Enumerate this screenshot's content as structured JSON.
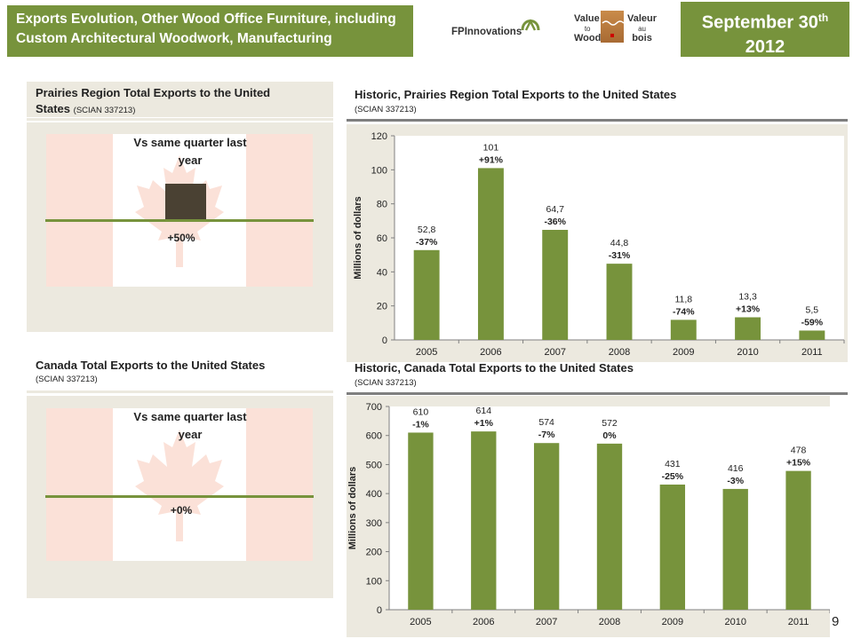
{
  "header": {
    "title_line1": "Exports Evolution, Other Wood Office Furniture, including",
    "title_line2": "Custom Architectural Woodwork, Manufacturing",
    "date_main": "September 30",
    "date_sup": "th",
    "date_year": "2012"
  },
  "logos": {
    "fp": "FPInnovations",
    "vtw_top": "Value",
    "vtw_mid": "to",
    "vtw_bot": "Wood",
    "vab_top": "Valeur",
    "vab_mid": "au",
    "vab_bot": "bois"
  },
  "prairies_panel": {
    "title_line1": "Prairies Region Total Exports to the United",
    "title_line2": "States",
    "code": "(SCIAN  337213)",
    "vs_label_line1": "Vs same quarter last",
    "vs_label_line2": "year",
    "change_label": "+50%",
    "change_value": 50
  },
  "canada_panel": {
    "title": "Canada Total Exports to the United States",
    "code": "(SCIAN  337213)",
    "vs_label_line1": "Vs same quarter last",
    "vs_label_line2": "year",
    "change_label": "+0%",
    "change_value": 0
  },
  "page_number": "9",
  "colors": {
    "accent": "#77933c",
    "bar": "#77933c",
    "dark_bar": "#4a4133",
    "flag_red": "#fbe1d8"
  },
  "chart_data": [
    {
      "type": "bar",
      "title": "Historic, Prairies Region Total Exports to the United States",
      "subtitle": "(SCIAN 337213)",
      "ylabel": "Millions  of dollars",
      "ylim": [
        0,
        120
      ],
      "yticks": [
        0,
        20,
        40,
        60,
        80,
        100,
        120
      ],
      "categories": [
        "2005",
        "2006",
        "2007",
        "2008",
        "2009",
        "2010",
        "2011"
      ],
      "values": [
        52.8,
        101,
        64.7,
        44.8,
        11.8,
        13.3,
        5.5
      ],
      "value_labels": [
        "52,8",
        "101",
        "64,7",
        "44,8",
        "11,8",
        "13,3",
        "5,5"
      ],
      "change_labels": [
        "-37%",
        "+91%",
        "-36%",
        "-31%",
        "-74%",
        "+13%",
        "-59%"
      ]
    },
    {
      "type": "bar",
      "title": "Historic, Canada Total Exports to the United States",
      "subtitle": "(SCIAN 337213)",
      "ylabel": "Millions of dollars",
      "ylim": [
        0,
        700
      ],
      "yticks": [
        0,
        100,
        200,
        300,
        400,
        500,
        600,
        700
      ],
      "categories": [
        "2005",
        "2006",
        "2007",
        "2008",
        "2009",
        "2010",
        "2011"
      ],
      "values": [
        610,
        614,
        574,
        572,
        431,
        416,
        478
      ],
      "value_labels": [
        "610",
        "614",
        "574",
        "572",
        "431",
        "416",
        "478"
      ],
      "change_labels": [
        "-1%",
        "+1%",
        "-7%",
        "0%",
        "-25%",
        "-3%",
        "+15%"
      ]
    }
  ]
}
